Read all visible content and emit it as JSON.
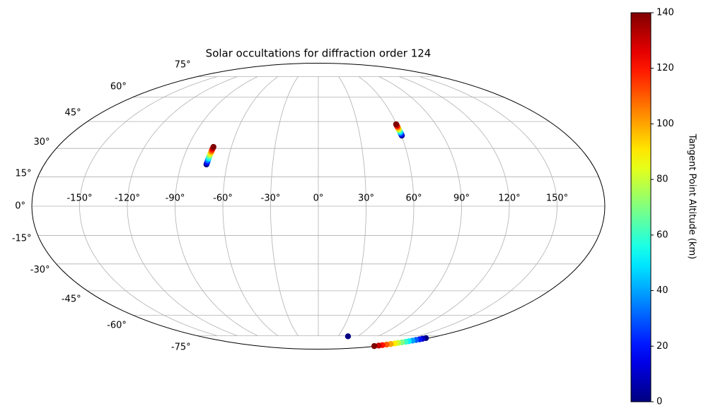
{
  "chart_data": {
    "type": "scatter",
    "projection": "mollweide",
    "title": "Solar occultations for diffraction order 124",
    "x": [
      -73.5,
      -73.4,
      -73.3,
      -73.3,
      -73.2,
      -73.1,
      -73.0,
      -73.0,
      -72.9,
      -72.8,
      -72.7,
      -72.7,
      -72.6,
      -72.5,
      -72.4,
      60.3,
      60.3,
      60.2,
      60.2,
      60.1,
      60.1,
      60.0,
      60.0,
      59.9,
      59.9,
      59.8,
      59.8,
      59.7,
      59.7,
      59.6,
      45.0,
      175.0,
      174.6,
      174.3,
      173.9,
      173.6,
      173.2,
      172.9,
      172.5,
      172.1,
      171.8,
      171.4,
      171.1,
      170.7,
      170.4,
      170.0
    ],
    "y": [
      21.5,
      22.2,
      22.8,
      23.5,
      24.2,
      24.8,
      25.5,
      26.1,
      26.8,
      27.5,
      28.1,
      28.8,
      29.5,
      30.1,
      30.8,
      37.0,
      37.5,
      37.9,
      38.4,
      38.8,
      39.3,
      39.7,
      40.2,
      40.6,
      41.1,
      41.5,
      42.0,
      42.5,
      42.9,
      43.4,
      -75.5,
      -77.0,
      -77.6,
      -78.1,
      -78.7,
      -79.3,
      -79.9,
      -80.4,
      -81.0,
      -81.6,
      -82.1,
      -82.7,
      -83.3,
      -83.9,
      -84.4,
      -85.0
    ],
    "c": [
      0,
      10,
      20,
      30,
      40,
      50,
      60,
      70,
      80,
      90,
      100,
      110,
      120,
      130,
      140,
      0,
      10,
      20,
      30,
      40,
      50,
      60,
      70,
      80,
      90,
      100,
      110,
      120,
      130,
      140,
      0,
      0,
      10,
      20,
      30,
      40,
      50,
      60,
      70,
      80,
      90,
      100,
      110,
      120,
      130,
      140
    ],
    "xticks": [
      {
        "value": -150,
        "label": "-150°"
      },
      {
        "value": -120,
        "label": "-120°"
      },
      {
        "value": -90,
        "label": "-90°"
      },
      {
        "value": -60,
        "label": "-60°"
      },
      {
        "value": -30,
        "label": "-30°"
      },
      {
        "value": 0,
        "label": "0°"
      },
      {
        "value": 30,
        "label": "30°"
      },
      {
        "value": 60,
        "label": "60°"
      },
      {
        "value": 90,
        "label": "90°"
      },
      {
        "value": 120,
        "label": "120°"
      },
      {
        "value": 150,
        "label": "150°"
      }
    ],
    "yticks": [
      {
        "value": -75,
        "label": "-75°"
      },
      {
        "value": -60,
        "label": "-60°"
      },
      {
        "value": -45,
        "label": "-45°"
      },
      {
        "value": -30,
        "label": "-30°"
      },
      {
        "value": -15,
        "label": "-15°"
      },
      {
        "value": 0,
        "label": "0°"
      },
      {
        "value": 15,
        "label": "15°"
      },
      {
        "value": 30,
        "label": "30°"
      },
      {
        "value": 45,
        "label": "45°"
      },
      {
        "value": 60,
        "label": "60°"
      },
      {
        "value": 75,
        "label": "75°"
      }
    ],
    "grid": true,
    "colormap": "jet",
    "clim": [
      0,
      140
    ],
    "cticks": [
      0,
      20,
      40,
      60,
      80,
      100,
      120,
      140
    ],
    "colorbar_label": "Tangent Point Altitude (km)"
  }
}
